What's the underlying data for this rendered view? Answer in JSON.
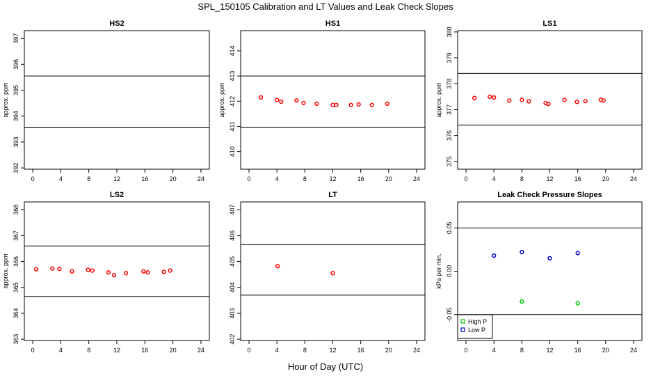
{
  "figure": {
    "title": "SPL_150105  Calibration and LT Values and Leak Check Slopes",
    "xlabel": "Hour of Day (UTC)"
  },
  "chart_data": [
    {
      "type": "scatter",
      "title": "HS2",
      "ylabel": "approx. ppm",
      "xlim": [
        -1.2,
        25.2
      ],
      "ylim": [
        391.95,
        397.3
      ],
      "xticks": [
        0,
        4,
        8,
        12,
        16,
        20,
        24
      ],
      "yticks": [
        392,
        393,
        394,
        395,
        396,
        397
      ],
      "hlines": [
        395.55,
        393.55
      ],
      "series": [
        {
          "color": "#ff0000",
          "marker": "circle",
          "x": [],
          "y": []
        }
      ]
    },
    {
      "type": "scatter",
      "title": "HS1",
      "ylabel": "approx. ppm",
      "xlim": [
        -1.2,
        25.2
      ],
      "ylim": [
        409.3,
        414.8
      ],
      "xticks": [
        0,
        4,
        8,
        12,
        16,
        20,
        24
      ],
      "yticks": [
        410,
        411,
        412,
        413,
        414
      ],
      "hlines": [
        413.0,
        410.95
      ],
      "series": [
        {
          "color": "#ff0000",
          "marker": "circle",
          "x": [
            1.7,
            4.0,
            4.6,
            6.8,
            7.8,
            9.7,
            12.0,
            12.5,
            14.6,
            15.7,
            17.6,
            19.8
          ],
          "y": [
            412.15,
            412.05,
            411.98,
            412.03,
            411.93,
            411.9,
            411.85,
            411.85,
            411.85,
            411.87,
            411.85,
            411.9
          ]
        }
      ]
    },
    {
      "type": "scatter",
      "title": "LS1",
      "ylabel": "approx. ppm",
      "xlim": [
        -1.2,
        25.2
      ],
      "ylim": [
        374.7,
        380.05
      ],
      "xticks": [
        0,
        4,
        8,
        12,
        16,
        20,
        24
      ],
      "yticks": [
        375,
        376,
        377,
        378,
        379,
        380
      ],
      "hlines": [
        378.4,
        376.4
      ],
      "series": [
        {
          "color": "#ff0000",
          "marker": "circle",
          "x": [
            1.2,
            3.4,
            4.0,
            6.2,
            8.0,
            9.0,
            11.4,
            11.8,
            14.1,
            15.9,
            17.1,
            19.3,
            19.7
          ],
          "y": [
            377.45,
            377.5,
            377.47,
            377.35,
            377.38,
            377.32,
            377.25,
            377.22,
            377.38,
            377.3,
            377.33,
            377.38,
            377.35
          ]
        }
      ]
    },
    {
      "type": "scatter",
      "title": "LS2",
      "ylabel": "approx. ppm",
      "xlim": [
        -1.2,
        25.2
      ],
      "ylim": [
        362.95,
        368.3
      ],
      "xticks": [
        0,
        4,
        8,
        12,
        16,
        20,
        24
      ],
      "yticks": [
        363,
        364,
        365,
        366,
        367,
        368
      ],
      "hlines": [
        366.6,
        364.65
      ],
      "series": [
        {
          "color": "#ff0000",
          "marker": "circle",
          "x": [
            0.5,
            2.8,
            3.8,
            5.6,
            7.9,
            8.5,
            10.8,
            11.6,
            13.3,
            15.8,
            16.4,
            18.7,
            19.6
          ],
          "y": [
            365.7,
            365.73,
            365.72,
            365.62,
            365.68,
            365.65,
            365.58,
            365.47,
            365.55,
            365.62,
            365.58,
            365.6,
            365.65
          ]
        }
      ]
    },
    {
      "type": "scatter",
      "title": "LT",
      "ylabel": "",
      "xlim": [
        -1.2,
        25.2
      ],
      "ylim": [
        401.95,
        407.3
      ],
      "xticks": [
        0,
        4,
        8,
        12,
        16,
        20,
        24
      ],
      "yticks": [
        402,
        403,
        404,
        405,
        406,
        407
      ],
      "hlines": [
        405.65,
        403.7
      ],
      "series": [
        {
          "color": "#ff0000",
          "marker": "circle",
          "x": [
            4.1,
            12.0
          ],
          "y": [
            404.82,
            404.55
          ]
        }
      ]
    },
    {
      "type": "scatter",
      "title": "Leak Check Pressure Slopes",
      "ylabel": "kPa per min.",
      "xlim": [
        -1.2,
        25.2
      ],
      "ylim": [
        -0.08,
        0.08
      ],
      "xticks": [
        0,
        4,
        8,
        12,
        16,
        20,
        24
      ],
      "yticks": [
        -0.05,
        0.0,
        0.05
      ],
      "ytick_labels": [
        "-0.05",
        "0.00",
        "0.05"
      ],
      "hlines": [
        0.05,
        -0.05
      ],
      "legend": "bottom-left",
      "series": [
        {
          "name": "High P",
          "color": "#00cc00",
          "marker": "circle",
          "x": [
            8.0,
            16.0
          ],
          "y": [
            -0.035,
            -0.037
          ]
        },
        {
          "name": "Low P",
          "color": "#0000cc",
          "marker": "circle",
          "x": [
            4.0,
            8.0,
            12.0,
            16.0
          ],
          "y": [
            0.018,
            0.022,
            0.015,
            0.021
          ]
        }
      ]
    }
  ]
}
